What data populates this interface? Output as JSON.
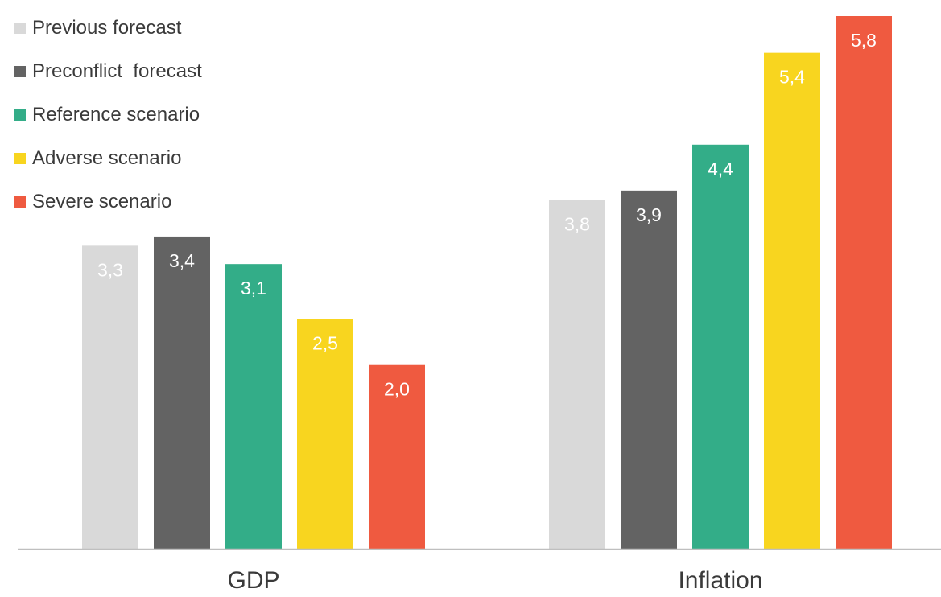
{
  "chart_data": {
    "type": "bar",
    "categories": [
      "GDP",
      "Inflation"
    ],
    "series": [
      {
        "name": "Previous forecast",
        "color": "#d9d9d9",
        "label_color": "#ffffff",
        "values": [
          3.3,
          3.8
        ],
        "labels": [
          "3,3",
          "3,8"
        ]
      },
      {
        "name": "Preconflict  forecast",
        "color": "#636363",
        "label_color": "#ffffff",
        "values": [
          3.4,
          3.9
        ],
        "labels": [
          "3,4",
          "3,9"
        ]
      },
      {
        "name": "Reference scenario",
        "color": "#33ad88",
        "label_color": "#ffffff",
        "values": [
          3.1,
          4.4
        ],
        "labels": [
          "3,1",
          "4,4"
        ]
      },
      {
        "name": "Adverse scenario",
        "color": "#f8d51f",
        "label_color": "#ffffff",
        "values": [
          2.5,
          5.4
        ],
        "labels": [
          "2,5",
          "5,4"
        ]
      },
      {
        "name": "Severe scenario",
        "color": "#ef5a40",
        "label_color": "#ffffff",
        "values": [
          2.0,
          5.8
        ],
        "labels": [
          "2,0",
          "5,8"
        ]
      }
    ],
    "ylim": [
      0,
      5.8
    ],
    "grid": false,
    "legend_position": "top-left",
    "axis_color": "#bfbfbf",
    "category_label_color": "#3a3a3a"
  }
}
